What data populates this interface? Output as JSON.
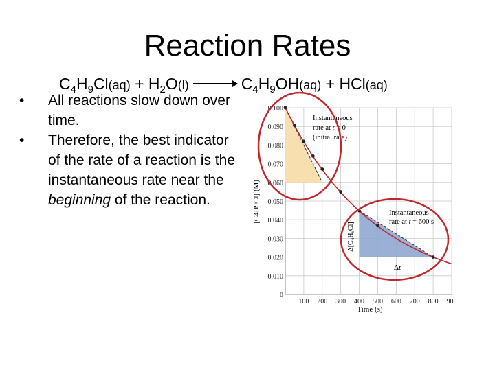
{
  "slide": {
    "title": "Reaction Rates",
    "equation": {
      "r1_main": "C",
      "r1_sub1": "4",
      "r1_mid": "H",
      "r1_sub2": "9",
      "r1_end": "Cl",
      "r1_state": "(aq)",
      "plus1": " + ",
      "r2_main": "H",
      "r2_sub": "2",
      "r2_end": "O",
      "r2_state": "(l)",
      "p1_main": "C",
      "p1_sub1": "4",
      "p1_mid": "H",
      "p1_sub2": "9",
      "p1_end": "OH",
      "p1_state": "(aq)",
      "plus2": " + ",
      "p2_main": "HCl",
      "p2_state": "(aq)"
    },
    "bullets": [
      {
        "symbol": "•",
        "text": "All reactions slow down over time."
      },
      {
        "symbol": "•",
        "text_before": "Therefore, the best indicator of the rate of a reaction is the instantaneous rate near the ",
        "text_emph": "beginning",
        "text_after": " of the reaction."
      }
    ]
  },
  "chart_data": {
    "type": "line",
    "xlabel": "Time (s)",
    "ylabel": "[C4H9Cl] (M)",
    "xlim": [
      0,
      900
    ],
    "ylim": [
      0,
      0.1
    ],
    "xticks": [
      "100",
      "200",
      "300",
      "400",
      "500",
      "600",
      "700",
      "800",
      "900"
    ],
    "yticks": [
      "0",
      "0.010",
      "0.020",
      "0.030",
      "0.040",
      "0.050",
      "0.060",
      "0.070",
      "0.080",
      "0.090",
      "0.100"
    ],
    "grid": true,
    "series": [
      {
        "x": [
          0,
          50,
          100,
          150,
          200,
          300,
          400,
          500,
          800
        ],
        "y": [
          0.1,
          0.0905,
          0.082,
          0.0741,
          0.0671,
          0.0549,
          0.0448,
          0.0368,
          0.02
        ]
      }
    ],
    "tangents": [
      {
        "x": [
          0,
          200
        ],
        "y": [
          0.1,
          0.06
        ]
      },
      {
        "x": [
          400,
          800
        ],
        "y": [
          0.0448,
          0.02
        ]
      }
    ],
    "annotations": [
      {
        "label": "Instantaneous rate at t = 0 (initial rate)"
      },
      {
        "label": "Instantaneous rate at t = 600 s"
      },
      {
        "label": "Δ[C4H9Cl]"
      },
      {
        "label": "Δt"
      }
    ],
    "colors": {
      "curve": "#c0282d",
      "tangent": "#333333",
      "highlight_ring": "#c0282d",
      "triangle1": "#f7dfb0",
      "triangle2": "#8fa7cf",
      "grid": "#c9c9c9"
    }
  }
}
